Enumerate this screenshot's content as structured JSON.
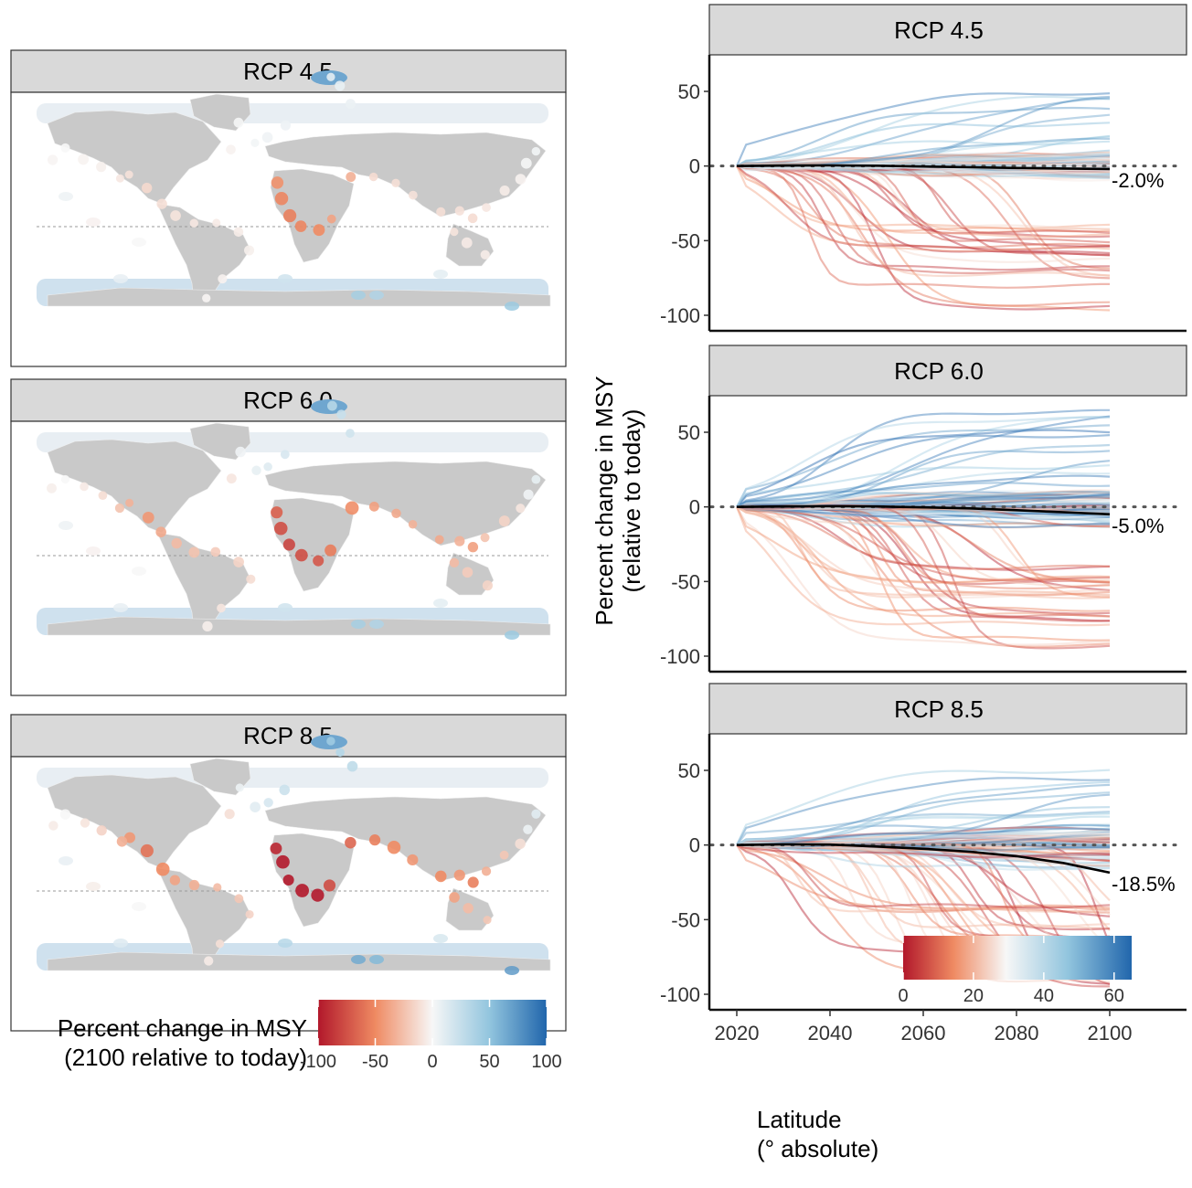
{
  "map_panels": [
    {
      "strip_label": "RCP 4.5"
    },
    {
      "strip_label": "RCP 6.0"
    },
    {
      "strip_label": "RCP 8.5"
    }
  ],
  "map_legend": {
    "title_line1": "Percent change in MSY",
    "title_line2": "(2100 relative to today)",
    "ticks": [
      "-100",
      "-50",
      "0",
      "50",
      "100"
    ],
    "tick_values": [
      -100,
      -50,
      0,
      50,
      100
    ],
    "range": [
      -100,
      100
    ]
  },
  "lat_legend": {
    "title_line1": "Latitude",
    "title_line2": "(° absolute)",
    "ticks": [
      "0",
      "20",
      "40",
      "60"
    ],
    "tick_values": [
      0,
      20,
      40,
      60
    ],
    "range": [
      0,
      65
    ]
  },
  "colors": {
    "strip_fill": "#d9d9d9",
    "land": "#c9c9c9",
    "decline_strong": "#b2182b",
    "decline_mid": "#ef8a62",
    "neutral": "#f7f7f7",
    "increase_mid": "#92c5de",
    "increase_strong": "#2166ac",
    "mean_line": "#000000"
  },
  "chart_data": {
    "type": "line",
    "ylabel_line1": "Percent change in MSY",
    "ylabel_line2": "(relative to today)",
    "xlim": [
      2020,
      2100
    ],
    "ylim": [
      -100,
      50
    ],
    "x_ticks": [
      "2020",
      "2040",
      "2060",
      "2080",
      "2100"
    ],
    "x_tick_values": [
      2020,
      2040,
      2060,
      2080,
      2100
    ],
    "y_ticks": [
      "50",
      "0",
      "-50",
      "-100"
    ],
    "y_tick_values": [
      50,
      0,
      -50,
      -100
    ],
    "reference_line_y": 0,
    "x": [
      2020,
      2030,
      2040,
      2050,
      2060,
      2070,
      2080,
      2090,
      2100
    ],
    "panels": [
      {
        "strip_label": "RCP 4.5",
        "end_label": "-2.0%",
        "mean_series": [
          0,
          0.3,
          0.4,
          0.2,
          -0.3,
          -0.8,
          -1.3,
          -1.7,
          -2.0
        ]
      },
      {
        "strip_label": "RCP 6.0",
        "end_label": "-5.0%",
        "mean_series": [
          0,
          0.3,
          0.5,
          0.3,
          -0.3,
          -1.0,
          -2.2,
          -3.6,
          -5.0
        ]
      },
      {
        "strip_label": "RCP 8.5",
        "end_label": "-18.5%",
        "mean_series": [
          0,
          0.5,
          0.3,
          -1.0,
          -2.5,
          -4.5,
          -7.5,
          -12.0,
          -18.5
        ]
      }
    ]
  }
}
